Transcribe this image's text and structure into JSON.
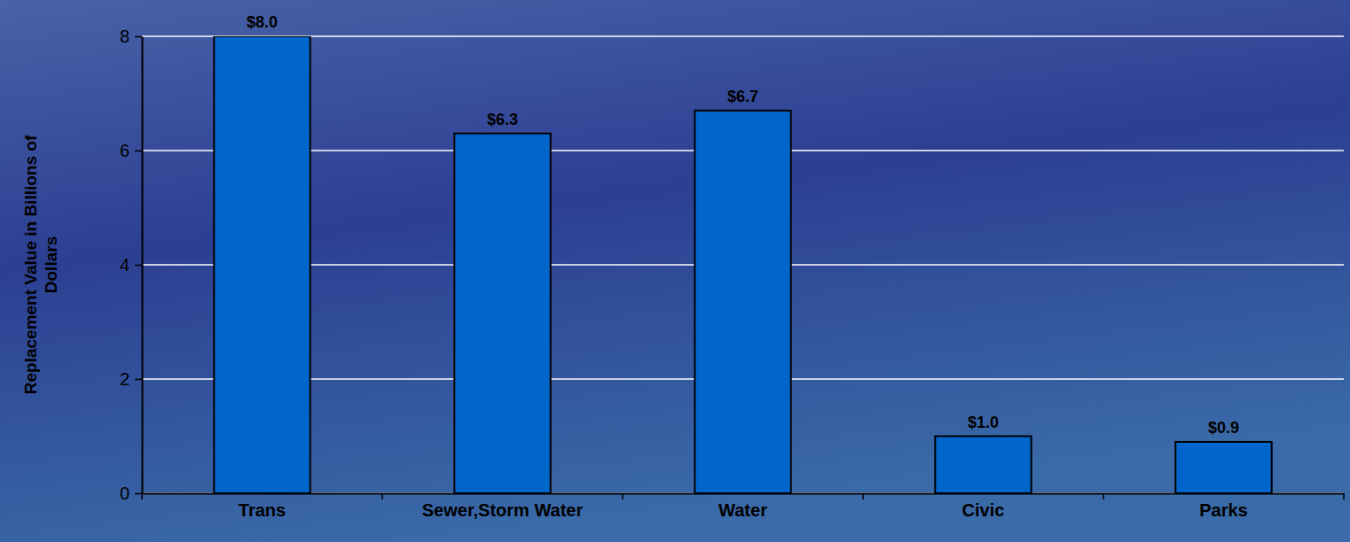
{
  "chart_data": {
    "type": "bar",
    "y_label": "Replacement Value in Billions of Dollars",
    "categories": [
      "Trans",
      "Sewer,Storm Water",
      "Water",
      "Civic",
      "Parks"
    ],
    "values": [
      8.0,
      6.3,
      6.7,
      1.0,
      0.9
    ],
    "value_labels": [
      "$8.0",
      "$6.3",
      "$6.7",
      "$1.0",
      "$0.9"
    ],
    "color": "#0066cc",
    "ylim": [
      0,
      8
    ],
    "yticks": [
      0,
      2,
      4,
      6,
      8
    ],
    "grid": true,
    "data_labels": true
  }
}
